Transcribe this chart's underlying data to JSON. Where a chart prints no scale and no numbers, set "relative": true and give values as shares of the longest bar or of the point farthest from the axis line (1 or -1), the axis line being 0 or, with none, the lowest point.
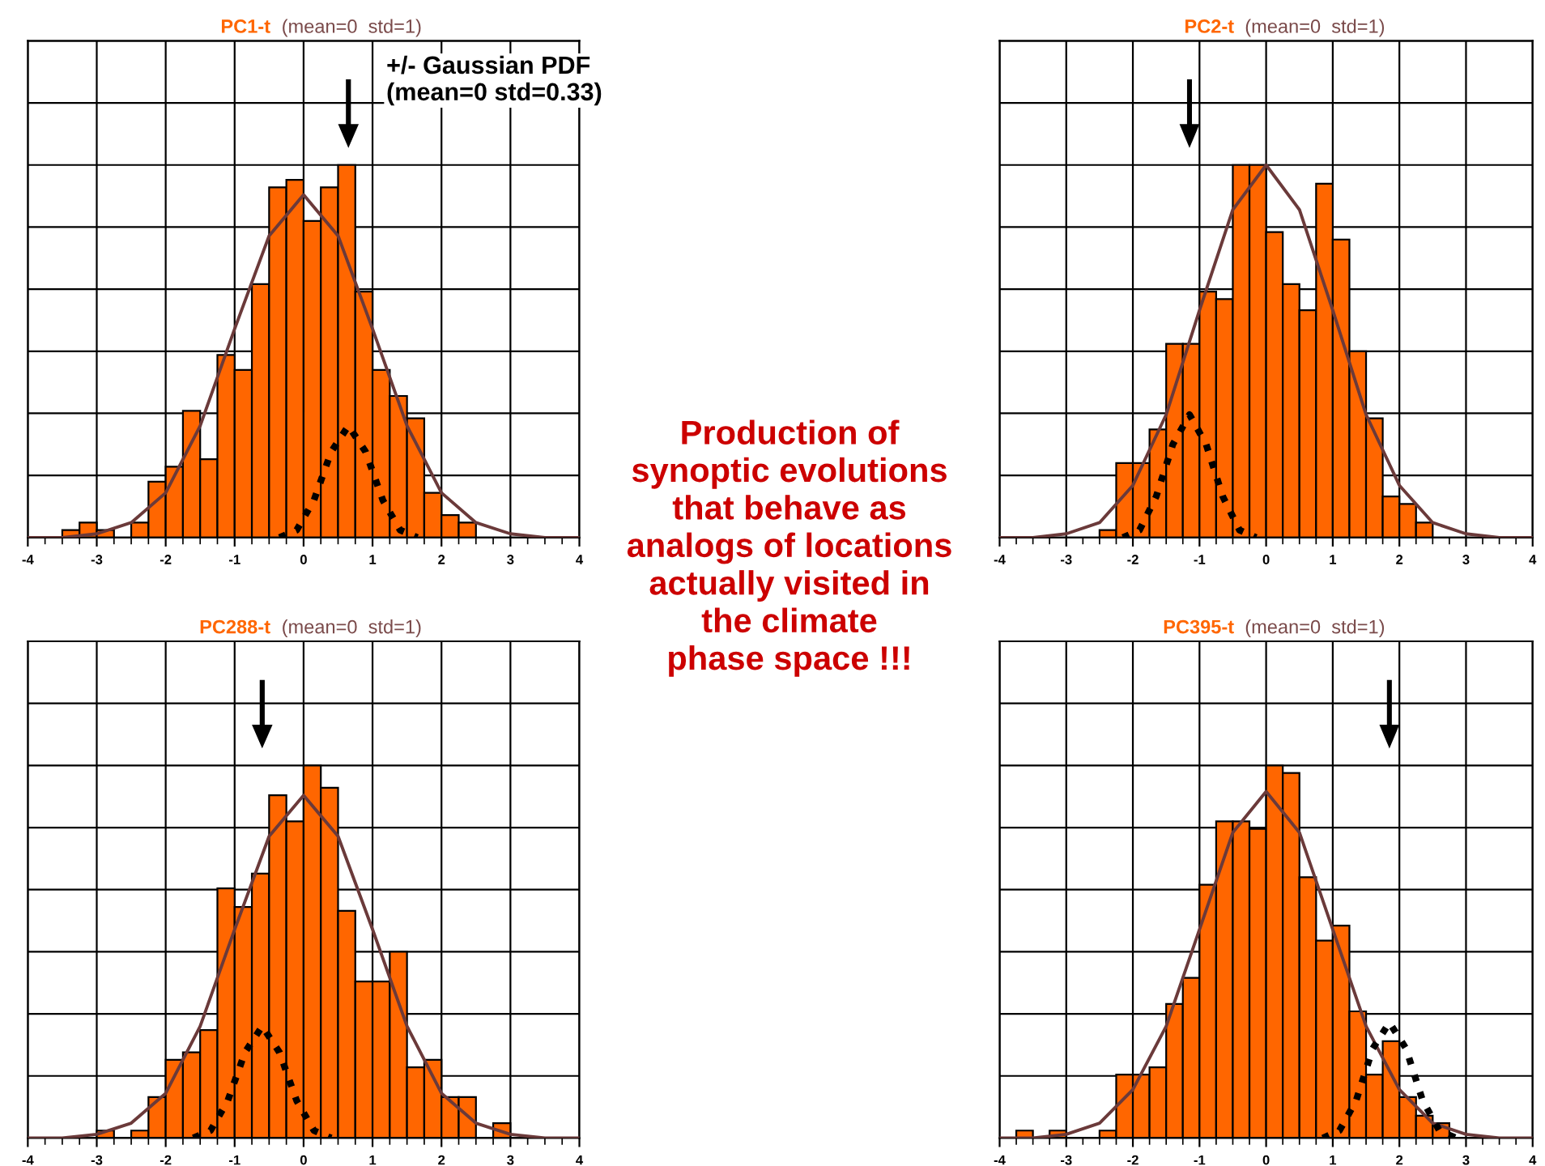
{
  "chart_data": [
    {
      "type": "histogram",
      "title": "PC1-t",
      "subtitle": "(mean=0  std=1)",
      "relative": true,
      "xlim": [
        -4,
        4
      ],
      "xticks": [
        -4,
        -3,
        -2,
        -1,
        0,
        1,
        2,
        3,
        4
      ],
      "grid": true,
      "tick_labels": "x",
      "annotations": [
        "+/- Gaussian PDF\n(mean=0 std=0.33)"
      ],
      "bins": [
        -4,
        -3.75,
        -3.5,
        -3.25,
        -3,
        -2.75,
        -2.5,
        -2.25,
        -2,
        -1.75,
        -1.5,
        -1.25,
        -1,
        -0.75,
        -0.5,
        -0.25,
        0,
        0.25,
        0.5,
        0.75,
        1,
        1.25,
        1.5,
        1.75,
        2,
        2.25,
        2.5,
        2.75,
        3,
        3.25,
        3.5,
        3.75,
        4
      ],
      "series": [
        {
          "type": "histogram",
          "color": "#ff6600",
          "values": [
            0,
            0,
            0.02,
            0.04,
            0.02,
            0,
            0.04,
            0.15,
            0.19,
            0.34,
            0.21,
            0.49,
            0.45,
            0.68,
            0.94,
            0.96,
            0.85,
            0.94,
            1,
            0.66,
            0.45,
            0.38,
            0.32,
            0.12,
            0.06,
            0.04,
            0,
            0,
            0,
            0,
            0,
            0
          ]
        },
        {
          "type": "line",
          "color": "#6b3a3a",
          "line_style": "solid",
          "x": [
            -4,
            -3.5,
            -3,
            -2.5,
            -2,
            -1.5,
            -1,
            -0.5,
            0,
            0.5,
            1,
            1.5,
            2,
            2.5,
            3,
            3.5,
            4
          ],
          "values": [
            0,
            0,
            0.01,
            0.04,
            0.12,
            0.3,
            0.56,
            0.81,
            0.92,
            0.81,
            0.56,
            0.3,
            0.12,
            0.04,
            0.01,
            0,
            0
          ]
        },
        {
          "type": "line",
          "color": "#000000",
          "line_style": "dotted",
          "x": [
            -0.35,
            -0.1,
            0.15,
            0.4,
            0.65,
            0.9,
            1.15,
            1.4,
            1.65
          ],
          "values": [
            0,
            0.02,
            0.1,
            0.23,
            0.3,
            0.23,
            0.1,
            0.02,
            0
          ]
        }
      ]
    },
    {
      "type": "histogram",
      "title": "PC2-t",
      "subtitle": "(mean=0  std=1)",
      "relative": true,
      "xlim": [
        -4,
        4
      ],
      "xticks": [
        -4,
        -3,
        -2,
        -1,
        0,
        1,
        2,
        3,
        4
      ],
      "grid": true,
      "tick_labels": "x",
      "bins": [
        -4,
        -3.75,
        -3.5,
        -3.25,
        -3,
        -2.75,
        -2.5,
        -2.25,
        -2,
        -1.75,
        -1.5,
        -1.25,
        -1,
        -0.75,
        -0.5,
        -0.25,
        0,
        0.25,
        0.5,
        0.75,
        1,
        1.25,
        1.5,
        1.75,
        2,
        2.25,
        2.5,
        2.75,
        3,
        3.25,
        3.5,
        3.75,
        4
      ],
      "series": [
        {
          "type": "histogram",
          "color": "#ff6600",
          "values": [
            0,
            0,
            0,
            0,
            0,
            0,
            0.02,
            0.2,
            0.2,
            0.29,
            0.52,
            0.52,
            0.66,
            0.64,
            1,
            1,
            0.82,
            0.68,
            0.61,
            0.95,
            0.8,
            0.5,
            0.32,
            0.11,
            0.09,
            0.04,
            0,
            0,
            0,
            0,
            0,
            0
          ]
        },
        {
          "type": "line",
          "color": "#6b3a3a",
          "line_style": "solid",
          "x": [
            -4,
            -3.5,
            -3,
            -2.5,
            -2,
            -1.5,
            -1,
            -0.5,
            0,
            0.5,
            1,
            1.5,
            2,
            2.5,
            3,
            3.5,
            4
          ],
          "values": [
            0,
            0,
            0.01,
            0.04,
            0.14,
            0.33,
            0.61,
            0.88,
            1,
            0.88,
            0.61,
            0.33,
            0.14,
            0.04,
            0.01,
            0,
            0
          ]
        },
        {
          "type": "line",
          "color": "#000000",
          "line_style": "dotted",
          "x": [
            -2.15,
            -1.9,
            -1.65,
            -1.4,
            -1.15,
            -0.9,
            -0.65,
            -0.4,
            -0.15
          ],
          "values": [
            0,
            0.02,
            0.11,
            0.25,
            0.33,
            0.25,
            0.11,
            0.02,
            0
          ]
        }
      ]
    },
    {
      "type": "other",
      "annotations": [
        "Production of\nsynoptic evolutions\nthat behave as\nanalogs of locations\nactually visited in\nthe climate\nphase space !!!"
      ]
    },
    {
      "type": "histogram",
      "title": "PC288-t",
      "subtitle": "(mean=0  std=1)",
      "relative": true,
      "xlim": [
        -4,
        4
      ],
      "xticks": [
        -4,
        -3,
        -2,
        -1,
        0,
        1,
        2,
        3,
        4
      ],
      "grid": true,
      "tick_labels": "x",
      "bins": [
        -4,
        -3.75,
        -3.5,
        -3.25,
        -3,
        -2.75,
        -2.5,
        -2.25,
        -2,
        -1.75,
        -1.5,
        -1.25,
        -1,
        -0.75,
        -0.5,
        -0.25,
        0,
        0.25,
        0.5,
        0.75,
        1,
        1.25,
        1.5,
        1.75,
        2,
        2.25,
        2.5,
        2.75,
        3,
        3.25,
        3.5,
        3.75,
        4
      ],
      "series": [
        {
          "type": "histogram",
          "color": "#ff6600",
          "values": [
            0,
            0,
            0,
            0,
            0.02,
            0,
            0.02,
            0.11,
            0.21,
            0.23,
            0.29,
            0.67,
            0.62,
            0.71,
            0.92,
            0.85,
            1,
            0.94,
            0.61,
            0.42,
            0.42,
            0.5,
            0.19,
            0.21,
            0.11,
            0.11,
            0,
            0.04,
            0,
            0,
            0,
            0
          ]
        },
        {
          "type": "line",
          "color": "#6b3a3a",
          "line_style": "solid",
          "x": [
            -4,
            -3.5,
            -3,
            -2.5,
            -2,
            -1.5,
            -1,
            -0.5,
            0,
            0.5,
            1,
            1.5,
            2,
            2.5,
            3,
            3.5,
            4
          ],
          "values": [
            0,
            0,
            0.01,
            0.04,
            0.12,
            0.3,
            0.56,
            0.81,
            0.92,
            0.81,
            0.56,
            0.3,
            0.12,
            0.04,
            0.01,
            0,
            0
          ]
        },
        {
          "type": "line",
          "color": "#000000",
          "line_style": "dotted",
          "x": [
            -1.6,
            -1.35,
            -1.1,
            -0.85,
            -0.6,
            -0.35,
            -0.1,
            0.15,
            0.4
          ],
          "values": [
            0,
            0.02,
            0.1,
            0.23,
            0.3,
            0.23,
            0.1,
            0.02,
            0
          ]
        }
      ]
    },
    {
      "type": "histogram",
      "title": "PC395-t",
      "subtitle": "(mean=0  std=1)",
      "relative": true,
      "xlim": [
        -4,
        4
      ],
      "xticks": [
        -4,
        -3,
        -2,
        -1,
        0,
        1,
        2,
        3,
        4
      ],
      "grid": true,
      "tick_labels": "x",
      "bins": [
        -4,
        -3.75,
        -3.5,
        -3.25,
        -3,
        -2.75,
        -2.5,
        -2.25,
        -2,
        -1.75,
        -1.5,
        -1.25,
        -1,
        -0.75,
        -0.5,
        -0.25,
        0,
        0.25,
        0.5,
        0.75,
        1,
        1.25,
        1.5,
        1.75,
        2,
        2.25,
        2.5,
        2.75,
        3,
        3.25,
        3.5,
        3.75,
        4
      ],
      "series": [
        {
          "type": "histogram",
          "color": "#ff6600",
          "values": [
            0,
            0.02,
            0,
            0.02,
            0,
            0,
            0.02,
            0.17,
            0.17,
            0.19,
            0.36,
            0.43,
            0.68,
            0.85,
            0.85,
            0.83,
            1,
            0.98,
            0.7,
            0.53,
            0.57,
            0.34,
            0.17,
            0.26,
            0.11,
            0.06,
            0.04,
            0,
            0,
            0,
            0,
            0
          ]
        },
        {
          "type": "line",
          "color": "#6b3a3a",
          "line_style": "solid",
          "x": [
            -4,
            -3.5,
            -3,
            -2.5,
            -2,
            -1.5,
            -1,
            -0.5,
            0,
            0.5,
            1,
            1.5,
            2,
            2.5,
            3,
            3.5,
            4
          ],
          "values": [
            0,
            0,
            0.01,
            0.04,
            0.13,
            0.3,
            0.56,
            0.82,
            0.93,
            0.82,
            0.56,
            0.3,
            0.13,
            0.04,
            0.01,
            0,
            0
          ]
        },
        {
          "type": "line",
          "color": "#000000",
          "line_style": "dotted",
          "x": [
            0.85,
            1.1,
            1.35,
            1.6,
            1.85,
            2.1,
            2.35,
            2.6,
            2.85
          ],
          "values": [
            0,
            0.02,
            0.1,
            0.24,
            0.31,
            0.24,
            0.1,
            0.02,
            0
          ]
        }
      ]
    }
  ]
}
